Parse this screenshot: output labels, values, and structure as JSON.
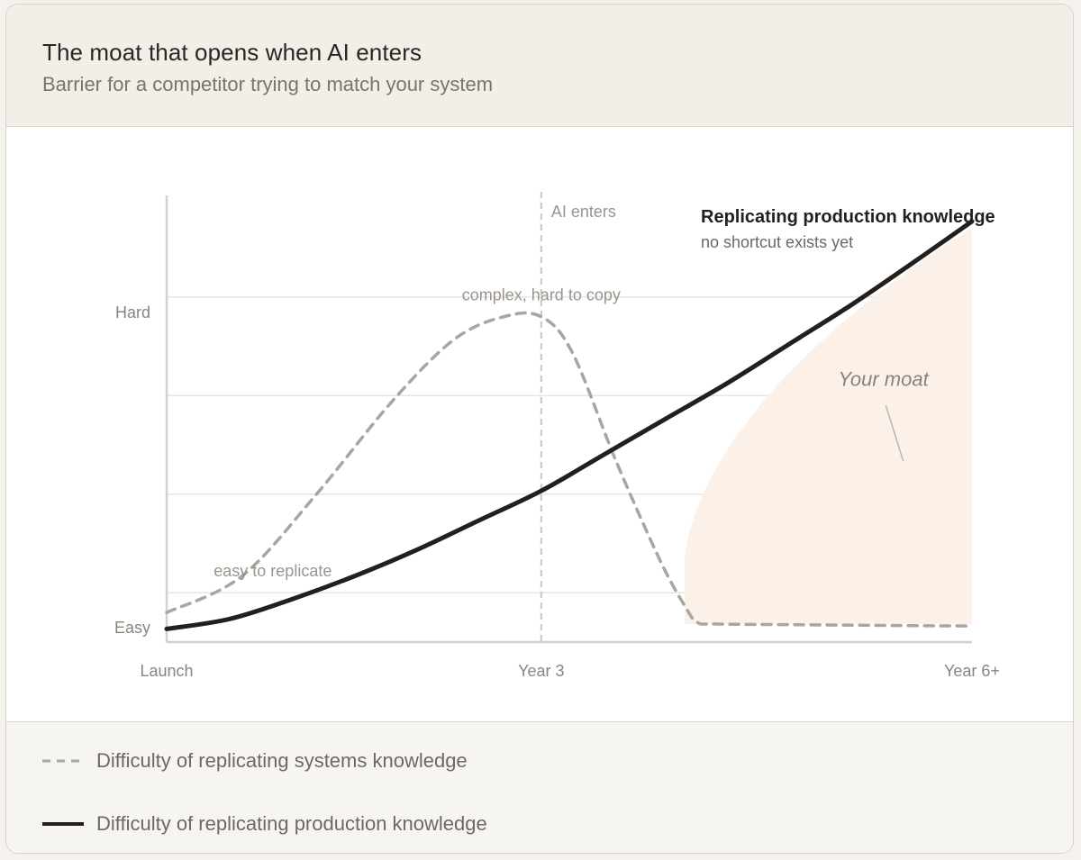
{
  "header": {
    "title": "The moat that opens when AI enters",
    "subtitle": "Barrier for a competitor trying to match your system"
  },
  "legend": {
    "items": [
      {
        "label": "Difficulty of replicating systems knowledge",
        "style": "dashed",
        "color": "#a9a5a1"
      },
      {
        "label": "Difficulty of replicating production knowledge",
        "style": "solid",
        "color": "#231f1d"
      }
    ]
  },
  "colors": {
    "production": "#231f1d",
    "systems": "#a9a5a1",
    "moat_fill": "#fbf1e8",
    "grid": "#e9e5df",
    "axis": "#d4d0cb",
    "tick_text": "#8a847e",
    "annotation_text": "#9a948e"
  },
  "chart_data": {
    "type": "line",
    "x_ticks": [
      {
        "x": 0,
        "label": "Launch"
      },
      {
        "x": 3,
        "label": "Year 3"
      },
      {
        "x": 6.45,
        "label": "Year 6+"
      }
    ],
    "y_ticks": [
      {
        "y": 0.05,
        "label": "Easy"
      },
      {
        "y": 1.0,
        "label": "Hard"
      }
    ],
    "xlim": [
      0,
      6.45
    ],
    "ylim": [
      0,
      1.37
    ],
    "grid": true,
    "series": [
      {
        "name": "Difficulty of replicating systems knowledge",
        "style": "dashed",
        "points": [
          [
            0,
            0.09
          ],
          [
            0.6,
            0.2
          ],
          [
            1.2,
            0.45
          ],
          [
            1.8,
            0.73
          ],
          [
            2.3,
            0.92
          ],
          [
            2.7,
            0.99
          ],
          [
            3.0,
            0.99
          ],
          [
            3.25,
            0.88
          ],
          [
            3.6,
            0.55
          ],
          [
            3.95,
            0.25
          ],
          [
            4.15,
            0.11
          ],
          [
            4.25,
            0.06
          ],
          [
            4.4,
            0.055
          ],
          [
            5.0,
            0.053
          ],
          [
            6.0,
            0.05
          ],
          [
            6.45,
            0.049
          ]
        ]
      },
      {
        "name": "Difficulty of replicating production knowledge",
        "style": "solid",
        "points": [
          [
            0,
            0.04
          ],
          [
            0.5,
            0.07
          ],
          [
            1.0,
            0.13
          ],
          [
            1.5,
            0.2
          ],
          [
            2.0,
            0.28
          ],
          [
            2.5,
            0.37
          ],
          [
            3.0,
            0.46
          ],
          [
            3.5,
            0.57
          ],
          [
            4.0,
            0.68
          ],
          [
            4.5,
            0.79
          ],
          [
            5.0,
            0.91
          ],
          [
            5.5,
            1.03
          ],
          [
            6.0,
            1.16
          ],
          [
            6.45,
            1.28
          ]
        ]
      }
    ],
    "vertical_marker": {
      "x": 3,
      "label": "AI enters"
    },
    "annotations": [
      {
        "text": "easy to replicate",
        "x": 0.85,
        "y": 0.2
      },
      {
        "text": "complex, hard to copy",
        "x": 3.0,
        "y": 1.04
      }
    ],
    "moat_region": {
      "label": "Your moat",
      "x_start": 4.15,
      "x_end": 6.45
    },
    "callout": {
      "title": "Replicating production knowledge",
      "subtitle": "no shortcut exists yet"
    }
  }
}
